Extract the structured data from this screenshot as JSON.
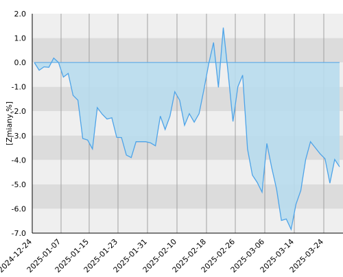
{
  "chart_data": {
    "type": "area",
    "ylabel": "[Zmiany,%]",
    "ylim": [
      -7.0,
      2.0
    ],
    "y_ticks": [
      "2.0",
      "1.0",
      "0.0",
      "-1.0",
      "-2.0",
      "-3.0",
      "-4.0",
      "-5.0",
      "-6.0",
      "-7.0"
    ],
    "y_tick_values": [
      2.0,
      1.0,
      0.0,
      -1.0,
      -2.0,
      -3.0,
      -4.0,
      -5.0,
      -6.0,
      -7.0
    ],
    "x_ticks": [
      "2024-12-24",
      "2025-01-07",
      "2025-01-15",
      "2025-01-23",
      "2025-01-31",
      "2025-02-10",
      "2025-02-18",
      "2025-02-26",
      "2025-03-06",
      "2025-03-14",
      "2025-03-24"
    ],
    "grid": true,
    "baseline": 0,
    "colors": {
      "line": "#4da3e8",
      "fill": "#b8dced",
      "band_light": "#efefef",
      "band_dark": "#dcdcdc",
      "vgrid": "#a0a0a0",
      "axis": "#000000"
    },
    "series": [
      {
        "points": [
          [
            0,
            0.0
          ],
          [
            1,
            -0.32
          ],
          [
            2,
            -0.18
          ],
          [
            3,
            -0.2
          ],
          [
            4,
            0.18
          ],
          [
            5,
            0.0
          ],
          [
            6,
            -0.6
          ],
          [
            7,
            -0.45
          ],
          [
            8,
            -1.35
          ],
          [
            9,
            -1.55
          ],
          [
            10,
            -3.12
          ],
          [
            11,
            -3.18
          ],
          [
            12,
            -3.55
          ],
          [
            13,
            -1.85
          ],
          [
            14,
            -2.12
          ],
          [
            15,
            -2.32
          ],
          [
            16,
            -2.27
          ],
          [
            17,
            -3.07
          ],
          [
            18,
            -3.08
          ],
          [
            19,
            -3.8
          ],
          [
            20,
            -3.9
          ],
          [
            21,
            -3.25
          ],
          [
            22,
            -3.25
          ],
          [
            23,
            -3.25
          ],
          [
            24,
            -3.3
          ],
          [
            25,
            -3.42
          ],
          [
            26,
            -2.2
          ],
          [
            27,
            -2.75
          ],
          [
            28,
            -2.2
          ],
          [
            29,
            -1.2
          ],
          [
            30,
            -1.55
          ],
          [
            31,
            -2.58
          ],
          [
            32,
            -2.1
          ],
          [
            33,
            -2.45
          ],
          [
            34,
            -2.1
          ],
          [
            35,
            -1.12
          ],
          [
            36,
            -0.05
          ],
          [
            37,
            0.82
          ],
          [
            38,
            -1.02
          ],
          [
            39,
            1.43
          ],
          [
            40,
            -0.42
          ],
          [
            41,
            -2.42
          ],
          [
            42,
            -1.0
          ],
          [
            43,
            -0.52
          ],
          [
            44,
            -3.55
          ],
          [
            45,
            -4.62
          ],
          [
            46,
            -4.92
          ],
          [
            47,
            -5.32
          ],
          [
            48,
            -3.32
          ],
          [
            49,
            -4.32
          ],
          [
            50,
            -5.2
          ],
          [
            51,
            -6.48
          ],
          [
            52,
            -6.42
          ],
          [
            53,
            -6.85
          ],
          [
            54,
            -5.82
          ],
          [
            55,
            -5.25
          ],
          [
            56,
            -3.98
          ],
          [
            57,
            -3.25
          ],
          [
            58,
            -3.5
          ],
          [
            59,
            -3.75
          ],
          [
            60,
            -3.95
          ],
          [
            61,
            -4.95
          ],
          [
            62,
            -3.98
          ],
          [
            63,
            -4.28
          ]
        ]
      }
    ]
  }
}
